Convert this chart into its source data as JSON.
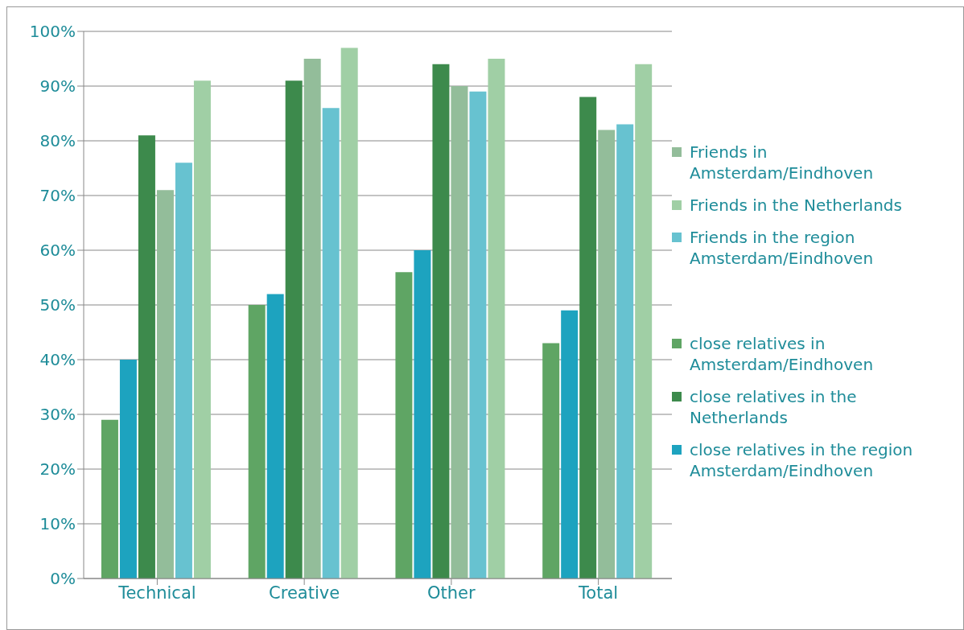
{
  "chart_data": {
    "type": "bar",
    "categories": [
      "Technical",
      "Creative",
      "Other",
      "Total"
    ],
    "series": [
      {
        "name": "close relatives in Amsterdam/Eindhoven",
        "color": "#5fa564",
        "values": [
          29,
          50,
          56,
          43
        ]
      },
      {
        "name": "close relatives in the region Amsterdam/Eindhoven",
        "color": "#1da3bf",
        "values": [
          40,
          52,
          60,
          49
        ]
      },
      {
        "name": "close relatives in the Netherlands",
        "color": "#3d8a4c",
        "values": [
          81,
          91,
          94,
          88
        ]
      },
      {
        "name": "Friends in Amsterdam/Eindhoven",
        "color": "#93bd9a",
        "values": [
          71,
          95,
          90,
          82
        ]
      },
      {
        "name": "Friends in the region Amsterdam/Eindhoven",
        "color": "#67c2d0",
        "values": [
          76,
          86,
          89,
          83
        ]
      },
      {
        "name": "Friends in the Netherlands",
        "color": "#a0cfa5",
        "values": [
          91,
          97,
          95,
          94
        ]
      }
    ],
    "ylim": [
      0,
      100
    ],
    "yticks": [
      {
        "value": 0,
        "label": "0%"
      },
      {
        "value": 10,
        "label": "10%"
      },
      {
        "value": 20,
        "label": "20%"
      },
      {
        "value": 30,
        "label": "30%"
      },
      {
        "value": 40,
        "label": "40%"
      },
      {
        "value": 50,
        "label": "50%"
      },
      {
        "value": 60,
        "label": "60%"
      },
      {
        "value": 70,
        "label": "70%"
      },
      {
        "value": 80,
        "label": "80%"
      },
      {
        "value": 90,
        "label": "90%"
      },
      {
        "value": 100,
        "label": "100%"
      }
    ],
    "grid": "y",
    "legend": "right"
  }
}
